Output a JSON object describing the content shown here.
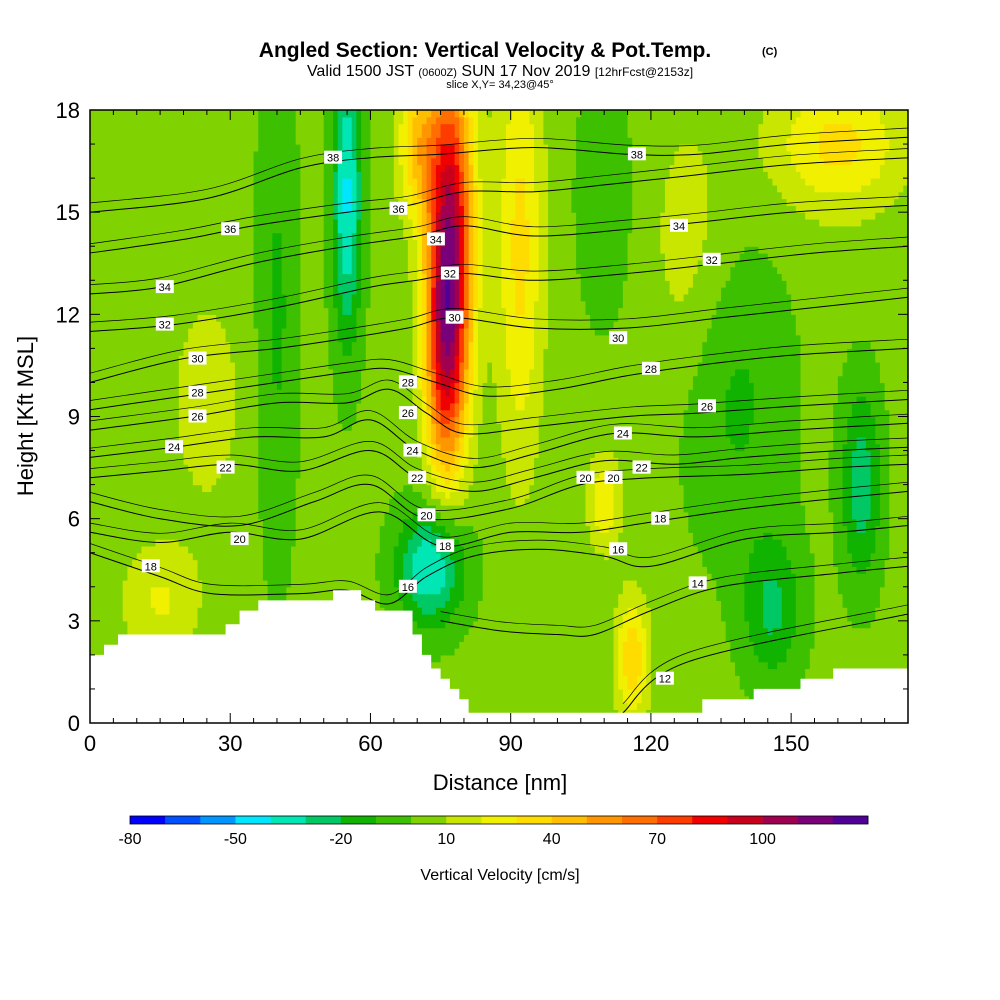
{
  "chart_data": {
    "type": "heatmap",
    "title": "Angled Section: Vertical Velocity & Pot.Temp.",
    "title_unit": "(C)",
    "subtitle": {
      "valid_prefix": "Valid 1500 JST",
      "valid_zulu": "(0600Z)",
      "valid_date": "SUN 17 Nov 2019",
      "forecast": "[12hrFcst@2153z]"
    },
    "slice_label": "slice X,Y= 34,23@45°",
    "xlabel": "Distance [nm]",
    "ylabel": "Height [Kft MSL]",
    "xlim": [
      0,
      175
    ],
    "ylim": [
      0,
      18
    ],
    "x_ticks": [
      0,
      30,
      60,
      90,
      120,
      150
    ],
    "y_ticks": [
      0,
      3,
      6,
      9,
      12,
      15,
      18
    ],
    "colorbar": {
      "label": "Vertical Velocity [cm/s]",
      "levels": [
        -80,
        -70,
        -60,
        -50,
        -40,
        -30,
        -20,
        -10,
        0,
        10,
        20,
        30,
        40,
        50,
        60,
        70,
        80,
        90,
        100,
        110,
        120
      ],
      "tick_labels": [
        "-80",
        "-50",
        "-20",
        "10",
        "40",
        "70",
        "100"
      ],
      "tick_values": [
        -80,
        -50,
        -20,
        10,
        40,
        70,
        100
      ],
      "colors": [
        "#0000ff",
        "#0050ff",
        "#0096ff",
        "#00e6ff",
        "#00e6b4",
        "#00c864",
        "#10b400",
        "#3cc000",
        "#80d200",
        "#c8e600",
        "#f0f000",
        "#ffdc00",
        "#ffbe00",
        "#ff9600",
        "#ff6e00",
        "#ff3c00",
        "#f00000",
        "#c8001e",
        "#a00050",
        "#780078",
        "#500096"
      ]
    },
    "vertical_velocity_features": [
      {
        "x": 55,
        "y": 15.5,
        "sx": 2.2,
        "sy": 3.0,
        "value": -45
      },
      {
        "x": 73,
        "y": 4.6,
        "sx": 5.0,
        "sy": 1.2,
        "value": -45
      },
      {
        "x": 77,
        "y": 14.5,
        "sx": 3.5,
        "sy": 3.5,
        "value": 95
      },
      {
        "x": 76,
        "y": 10.5,
        "sx": 3.0,
        "sy": 2.5,
        "value": 55
      },
      {
        "x": 70,
        "y": 17.0,
        "sx": 3.0,
        "sy": 1.5,
        "value": 35
      },
      {
        "x": 92,
        "y": 14.0,
        "sx": 3.5,
        "sy": 4.5,
        "value": 30
      },
      {
        "x": 116,
        "y": 1.9,
        "sx": 2.5,
        "sy": 1.3,
        "value": 35
      },
      {
        "x": 110,
        "y": 6.5,
        "sx": 2.5,
        "sy": 1.0,
        "value": 25
      },
      {
        "x": 160,
        "y": 17.0,
        "sx": 10.0,
        "sy": 1.4,
        "value": 30
      },
      {
        "x": 165,
        "y": 7.0,
        "sx": 3.0,
        "sy": 2.0,
        "value": -30
      },
      {
        "x": 146,
        "y": 3.4,
        "sx": 4.5,
        "sy": 1.5,
        "value": -25
      },
      {
        "x": 15,
        "y": 3.6,
        "sx": 6.0,
        "sy": 1.2,
        "value": 18
      },
      {
        "x": 40,
        "y": 12.0,
        "sx": 3.0,
        "sy": 5.0,
        "value": -15
      },
      {
        "x": 138,
        "y": 9.5,
        "sx": 8.0,
        "sy": 3.0,
        "value": -15
      },
      {
        "x": 110,
        "y": 15.5,
        "sx": 4.0,
        "sy": 2.5,
        "value": -12
      },
      {
        "x": 25,
        "y": 9.5,
        "sx": 6.0,
        "sy": 2.5,
        "value": 12
      },
      {
        "x": 128,
        "y": 14.0,
        "sx": 6.0,
        "sy": 3.0,
        "value": 12
      }
    ],
    "terrain": [
      [
        0,
        2.0
      ],
      [
        3,
        2.0
      ],
      [
        3,
        2.3
      ],
      [
        6,
        2.3
      ],
      [
        6,
        2.6
      ],
      [
        29,
        2.6
      ],
      [
        29,
        2.9
      ],
      [
        32,
        2.9
      ],
      [
        32,
        3.3
      ],
      [
        36,
        3.3
      ],
      [
        36,
        3.6
      ],
      [
        52,
        3.6
      ],
      [
        52,
        3.9
      ],
      [
        58,
        3.9
      ],
      [
        58,
        3.6
      ],
      [
        61,
        3.6
      ],
      [
        61,
        3.3
      ],
      [
        65,
        3.3
      ],
      [
        69,
        3.3
      ],
      [
        69,
        2.6
      ],
      [
        71,
        2.6
      ],
      [
        71,
        2.0
      ],
      [
        73,
        2.0
      ],
      [
        73,
        1.6
      ],
      [
        75,
        1.6
      ],
      [
        75,
        1.3
      ],
      [
        77,
        1.3
      ],
      [
        77,
        1.0
      ],
      [
        79,
        1.0
      ],
      [
        79,
        0.7
      ],
      [
        81,
        0.7
      ],
      [
        81,
        0.3
      ],
      [
        131,
        0.3
      ],
      [
        131,
        0.7
      ],
      [
        142,
        0.7
      ],
      [
        142,
        1.0
      ],
      [
        152,
        1.0
      ],
      [
        152,
        1.3
      ],
      [
        159,
        1.3
      ],
      [
        159,
        1.6
      ],
      [
        175,
        1.6
      ],
      [
        175,
        0
      ],
      [
        0,
        0
      ]
    ],
    "theta_contours": [
      {
        "value": 12,
        "label": "12",
        "points": [
          [
            114,
            0.3
          ],
          [
            128,
            1.8
          ],
          [
            175,
            3.2
          ]
        ],
        "label_at": [
          123,
          1.3
        ]
      },
      {
        "value": 14,
        "label": "14",
        "points": [
          [
            75,
            3.0
          ],
          [
            88,
            2.7
          ],
          [
            100,
            2.6
          ],
          [
            108,
            2.6
          ],
          [
            120,
            3.3
          ],
          [
            135,
            4.0
          ],
          [
            160,
            4.4
          ],
          [
            175,
            4.6
          ]
        ],
        "label_at": [
          130,
          4.1
        ]
      },
      {
        "value": 16,
        "label": "16",
        "points": [
          [
            0,
            5.0
          ],
          [
            15,
            4.3
          ],
          [
            26,
            3.8
          ],
          [
            45,
            3.8
          ],
          [
            55,
            3.9
          ],
          [
            64,
            3.5
          ],
          [
            72,
            4.3
          ],
          [
            82,
            4.9
          ],
          [
            96,
            5.1
          ],
          [
            110,
            4.9
          ],
          [
            120,
            4.6
          ],
          [
            140,
            5.4
          ],
          [
            160,
            5.6
          ],
          [
            175,
            5.8
          ]
        ],
        "label_at": [
          68,
          4.0
        ]
      },
      {
        "value": 18,
        "label": "18",
        "points": [
          [
            0,
            5.6
          ],
          [
            15,
            5.3
          ],
          [
            30,
            5.6
          ],
          [
            45,
            5.4
          ],
          [
            62,
            6.2
          ],
          [
            75,
            5.2
          ],
          [
            90,
            5.6
          ],
          [
            105,
            5.6
          ],
          [
            120,
            5.9
          ],
          [
            140,
            6.3
          ],
          [
            160,
            6.6
          ],
          [
            175,
            6.8
          ]
        ],
        "label_at": [
          122,
          6.0
        ]
      },
      {
        "value": 20,
        "label": "20",
        "points": [
          [
            0,
            6.5
          ],
          [
            15,
            6.0
          ],
          [
            32,
            5.8
          ],
          [
            48,
            6.5
          ],
          [
            60,
            7.0
          ],
          [
            72,
            6.0
          ],
          [
            90,
            6.3
          ],
          [
            105,
            7.0
          ],
          [
            120,
            7.2
          ],
          [
            140,
            7.3
          ],
          [
            160,
            7.5
          ],
          [
            175,
            7.6
          ]
        ],
        "label_at": [
          106,
          7.2
        ]
      },
      {
        "value": 22,
        "label": "22",
        "points": [
          [
            0,
            7.2
          ],
          [
            15,
            7.4
          ],
          [
            30,
            7.6
          ],
          [
            45,
            7.4
          ],
          [
            60,
            8.0
          ],
          [
            70,
            7.2
          ],
          [
            82,
            6.8
          ],
          [
            95,
            7.2
          ],
          [
            110,
            7.7
          ],
          [
            125,
            7.6
          ],
          [
            140,
            7.8
          ],
          [
            160,
            8.0
          ],
          [
            175,
            8.1
          ]
        ],
        "label_at": [
          118,
          7.5
        ]
      },
      {
        "value": 24,
        "label": "24",
        "points": [
          [
            0,
            7.8
          ],
          [
            18,
            8.1
          ],
          [
            35,
            8.4
          ],
          [
            50,
            8.4
          ],
          [
            60,
            8.9
          ],
          [
            70,
            8.0
          ],
          [
            82,
            7.5
          ],
          [
            95,
            7.9
          ],
          [
            112,
            8.5
          ],
          [
            130,
            8.4
          ],
          [
            150,
            8.6
          ],
          [
            175,
            8.8
          ]
        ],
        "label_at": [
          114,
          8.5
        ]
      },
      {
        "value": 26,
        "label": "26",
        "points": [
          [
            0,
            8.6
          ],
          [
            22,
            9.0
          ],
          [
            40,
            9.4
          ],
          [
            55,
            9.4
          ],
          [
            64,
            9.8
          ],
          [
            72,
            9.1
          ],
          [
            80,
            8.5
          ],
          [
            95,
            8.7
          ],
          [
            115,
            9.0
          ],
          [
            130,
            9.1
          ],
          [
            150,
            9.3
          ],
          [
            175,
            9.5
          ]
        ],
        "label_at": [
          132,
          9.3
        ]
      },
      {
        "value": 28,
        "label": "28",
        "points": [
          [
            0,
            9.2
          ],
          [
            20,
            9.6
          ],
          [
            40,
            10.0
          ],
          [
            55,
            10.3
          ],
          [
            64,
            10.4
          ],
          [
            74,
            10.0
          ],
          [
            85,
            9.6
          ],
          [
            100,
            9.8
          ],
          [
            115,
            10.2
          ],
          [
            130,
            10.5
          ],
          [
            150,
            10.8
          ],
          [
            175,
            11.0
          ]
        ],
        "label_at": [
          120,
          10.4
        ]
      },
      {
        "value": 30,
        "label": "30",
        "points": [
          [
            0,
            10.0
          ],
          [
            20,
            10.7
          ],
          [
            40,
            11.0
          ],
          [
            55,
            11.3
          ],
          [
            68,
            11.6
          ],
          [
            78,
            11.9
          ],
          [
            95,
            11.6
          ],
          [
            115,
            11.6
          ],
          [
            135,
            11.9
          ],
          [
            155,
            12.2
          ],
          [
            175,
            12.5
          ]
        ],
        "label_at": [
          113,
          11.3
        ]
      },
      {
        "value": 32,
        "label": "32",
        "points": [
          [
            0,
            11.5
          ],
          [
            18,
            11.7
          ],
          [
            40,
            12.2
          ],
          [
            60,
            12.8
          ],
          [
            70,
            13.0
          ],
          [
            80,
            13.2
          ],
          [
            95,
            13.0
          ],
          [
            115,
            13.2
          ],
          [
            135,
            13.5
          ],
          [
            155,
            13.8
          ],
          [
            175,
            14.0
          ]
        ],
        "label_at": [
          133,
          13.6
        ]
      },
      {
        "value": 34,
        "label": "34",
        "points": [
          [
            0,
            12.6
          ],
          [
            15,
            12.8
          ],
          [
            35,
            13.5
          ],
          [
            55,
            14.0
          ],
          [
            70,
            14.3
          ],
          [
            80,
            14.6
          ],
          [
            95,
            14.3
          ],
          [
            115,
            14.5
          ],
          [
            130,
            14.7
          ],
          [
            150,
            15.0
          ],
          [
            175,
            15.2
          ]
        ],
        "label_at": [
          126,
          14.6
        ]
      },
      {
        "value": 36,
        "label": "36",
        "points": [
          [
            0,
            13.8
          ],
          [
            20,
            14.2
          ],
          [
            35,
            14.6
          ],
          [
            55,
            15.0
          ],
          [
            68,
            15.2
          ],
          [
            80,
            15.6
          ],
          [
            95,
            15.6
          ],
          [
            110,
            15.8
          ],
          [
            130,
            16.1
          ],
          [
            150,
            16.4
          ],
          [
            175,
            16.6
          ]
        ],
        "label_at": [
          30,
          14.5
        ]
      },
      {
        "value": 38,
        "label": "38",
        "points": [
          [
            0,
            15.0
          ],
          [
            25,
            15.4
          ],
          [
            45,
            16.3
          ],
          [
            60,
            16.6
          ],
          [
            75,
            16.7
          ],
          [
            95,
            16.9
          ],
          [
            115,
            16.7
          ],
          [
            130,
            16.7
          ],
          [
            150,
            17.0
          ],
          [
            175,
            17.2
          ]
        ],
        "label_at": [
          52,
          16.6
        ]
      }
    ],
    "extra_contour_labels": [
      {
        "label": "18",
        "x": 13,
        "y": 4.6
      },
      {
        "label": "20",
        "x": 32,
        "y": 5.4
      },
      {
        "label": "22",
        "x": 29,
        "y": 7.5
      },
      {
        "label": "24",
        "x": 18,
        "y": 8.1
      },
      {
        "label": "26",
        "x": 23,
        "y": 9.0
      },
      {
        "label": "28",
        "x": 23,
        "y": 9.7
      },
      {
        "label": "30",
        "x": 23,
        "y": 10.7
      },
      {
        "label": "32",
        "x": 16,
        "y": 11.7
      },
      {
        "label": "34",
        "x": 16,
        "y": 12.8
      },
      {
        "label": "36",
        "x": 66,
        "y": 15.1
      },
      {
        "label": "38",
        "x": 117,
        "y": 16.7
      },
      {
        "label": "18",
        "x": 76,
        "y": 5.2
      },
      {
        "label": "20",
        "x": 72,
        "y": 6.1
      },
      {
        "label": "22",
        "x": 70,
        "y": 7.2
      },
      {
        "label": "24",
        "x": 69,
        "y": 8.0
      },
      {
        "label": "26",
        "x": 68,
        "y": 9.1
      },
      {
        "label": "28",
        "x": 68,
        "y": 10.0
      },
      {
        "label": "30",
        "x": 78,
        "y": 11.9
      },
      {
        "label": "32",
        "x": 77,
        "y": 13.2
      },
      {
        "label": "34",
        "x": 74,
        "y": 14.2
      },
      {
        "label": "16",
        "x": 113,
        "y": 5.1
      },
      {
        "label": "20",
        "x": 112,
        "y": 7.2
      },
      {
        "label": "22",
        "x": 118,
        "y": 7.5
      }
    ]
  }
}
